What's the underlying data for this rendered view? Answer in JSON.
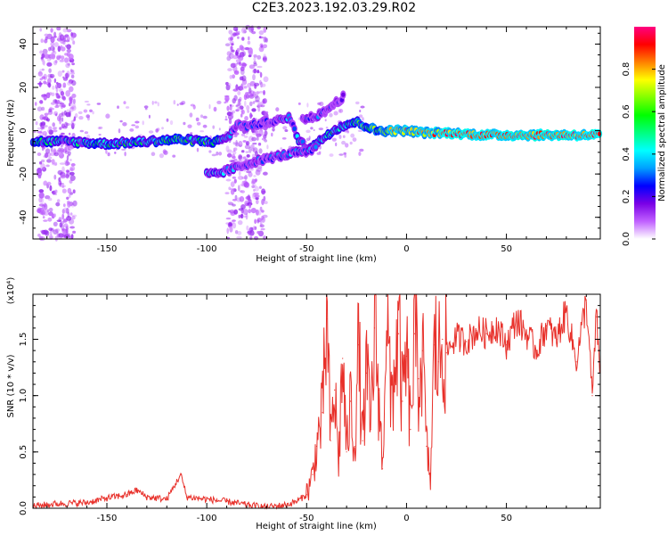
{
  "title": "C2E3.2023.192.03.29.R02",
  "chart_data": [
    {
      "type": "heatmap",
      "title": "C2E3.2023.192.03.29.R02",
      "xlabel": "Height of straight line (km)",
      "ylabel": "Frequency (Hz)",
      "xlim": [
        -187,
        97
      ],
      "ylim": [
        -50,
        48
      ],
      "xticks": [
        -150,
        -100,
        -50,
        0,
        50
      ],
      "yticks": [
        -40,
        -20,
        0,
        20,
        40
      ],
      "colorbar": {
        "label": "Normalized spectral amplitude",
        "range": [
          0.0,
          1.0
        ],
        "ticks": [
          0.0,
          0.2,
          0.4,
          0.6,
          0.8
        ],
        "colors": [
          "#ffffff",
          "#c060ff",
          "#7a00e6",
          "#0000ff",
          "#00a0ff",
          "#00ffff",
          "#00ff80",
          "#00ff00",
          "#80ff00",
          "#ffff00",
          "#ff8000",
          "#ff0000",
          "#ff0080"
        ]
      },
      "tracks": [
        {
          "name": "main",
          "points": [
            [
              -187,
              -5
            ],
            [
              -170,
              -5
            ],
            [
              -150,
              -6
            ],
            [
              -130,
              -5
            ],
            [
              -115,
              -4
            ],
            [
              -100,
              -5
            ],
            [
              -95,
              -5
            ],
            [
              -88,
              -2
            ],
            [
              -85,
              3
            ],
            [
              -80,
              2
            ],
            [
              -70,
              4
            ],
            [
              -62,
              5
            ],
            [
              -58,
              6
            ],
            [
              -55,
              -3
            ],
            [
              -50,
              -8
            ],
            [
              -45,
              -6
            ],
            [
              -40,
              -2
            ],
            [
              -35,
              1
            ],
            [
              -30,
              3
            ],
            [
              -25,
              4
            ],
            [
              -20,
              2
            ],
            [
              -15,
              0
            ],
            [
              -10,
              0
            ],
            [
              0,
              0
            ],
            [
              10,
              -1
            ],
            [
              20,
              -1
            ],
            [
              40,
              -2
            ],
            [
              60,
              -2
            ],
            [
              80,
              -2
            ],
            [
              97,
              -2
            ]
          ],
          "amplitude": [
            0.45,
            0.4,
            0.45,
            0.5,
            0.55,
            0.5,
            0.45,
            0.3,
            0.2,
            0.2,
            0.2,
            0.25,
            0.3,
            0.35,
            0.4,
            0.4,
            0.45,
            0.5,
            0.5,
            0.55,
            0.6,
            0.65,
            0.75,
            0.8,
            0.8,
            0.85,
            0.9,
            0.9,
            0.9,
            0.9
          ]
        },
        {
          "name": "lower",
          "points": [
            [
              -100,
              -20
            ],
            [
              -95,
              -20
            ],
            [
              -85,
              -17
            ],
            [
              -75,
              -14
            ],
            [
              -65,
              -12
            ],
            [
              -55,
              -10
            ],
            [
              -50,
              -10
            ],
            [
              -45,
              -8
            ]
          ],
          "amplitude": [
            0.35,
            0.35,
            0.25,
            0.2,
            0.25,
            0.3,
            0.3,
            0.3
          ]
        },
        {
          "name": "upper",
          "points": [
            [
              -52,
              5
            ],
            [
              -48,
              6
            ],
            [
              -42,
              8
            ],
            [
              -38,
              11
            ],
            [
              -34,
              14
            ],
            [
              -31,
              16
            ]
          ],
          "amplitude": [
            0.25,
            0.25,
            0.2,
            0.2,
            0.2,
            0.2
          ]
        }
      ]
    },
    {
      "type": "line",
      "xlabel": "Height of straight line (km)",
      "ylabel": "SNR (10 * v/v)",
      "multiplier": "(x10⁴)",
      "xlim": [
        -187,
        97
      ],
      "ylim": [
        0.0,
        1.9
      ],
      "xticks": [
        -150,
        -100,
        -50,
        0,
        50
      ],
      "yticks": [
        0.0,
        0.5,
        1.0,
        1.5
      ],
      "color": "#e8302a",
      "series": [
        {
          "x": [
            -187,
            -175,
            -160,
            -150,
            -140,
            -135,
            -130,
            -120,
            -113,
            -110,
            -100,
            -90,
            -80,
            -70,
            -60,
            -55,
            -50,
            -47,
            -45,
            -42,
            -40,
            -38,
            -36,
            -34,
            -32,
            -30,
            -28,
            -26,
            -24,
            -22,
            -20,
            -18,
            -16,
            -14,
            -12,
            -10,
            -8,
            -6,
            -4,
            -2,
            0,
            2,
            4,
            6,
            8,
            10,
            12,
            14,
            16,
            18,
            20,
            22,
            25,
            30,
            35,
            40,
            45,
            50,
            55,
            60,
            65,
            70,
            75,
            80,
            85,
            90,
            93,
            95,
            97
          ],
          "y": [
            0.02,
            0.04,
            0.05,
            0.09,
            0.12,
            0.16,
            0.1,
            0.08,
            0.3,
            0.1,
            0.08,
            0.06,
            0.03,
            0.01,
            0.03,
            0.06,
            0.12,
            0.3,
            0.55,
            0.85,
            1.68,
            0.6,
            1.05,
            0.4,
            1.33,
            0.5,
            0.95,
            0.55,
            1.45,
            0.6,
            1.2,
            0.7,
            1.6,
            1.05,
            0.35,
            1.9,
            0.9,
            1.25,
            1.55,
            0.95,
            1.35,
            0.7,
            1.55,
            1.15,
            1.4,
            0.55,
            0.25,
            1.45,
            1.3,
            1.5,
            1.38,
            1.45,
            1.52,
            1.48,
            1.58,
            1.55,
            1.62,
            1.45,
            1.68,
            1.55,
            1.4,
            1.62,
            1.5,
            1.75,
            1.3,
            1.85,
            1.0,
            1.7,
            1.2
          ]
        }
      ]
    }
  ]
}
